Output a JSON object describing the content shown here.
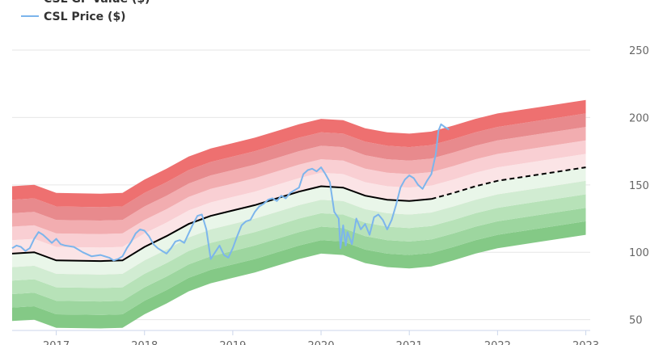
{
  "chart_data": {
    "type": "area",
    "legend": {
      "placement": "top-left",
      "items": [
        {
          "name": "CSL GF Value ($)",
          "color": "#000000"
        },
        {
          "name": "CSL Price ($)",
          "color": "#7cb5ec"
        }
      ]
    },
    "x_ticks": [
      "2017",
      "2018",
      "2019",
      "2020",
      "2021",
      "2022",
      "2023"
    ],
    "y_ticks": [
      50,
      100,
      150,
      200,
      250
    ],
    "ylim": [
      42,
      250
    ],
    "xlim": [
      2016.5,
      2023.05
    ],
    "grid": true,
    "gf_value": {
      "x": [
        2016.5,
        2016.75,
        2017.0,
        2017.5,
        2017.75,
        2018.0,
        2018.25,
        2018.5,
        2018.75,
        2019.0,
        2019.25,
        2019.5,
        2019.75,
        2020.0,
        2020.25,
        2020.5,
        2020.75,
        2021.0,
        2021.25,
        2021.5,
        2021.75,
        2022.0,
        2022.5,
        2023.0
      ],
      "y": [
        99,
        100,
        94,
        93.5,
        94,
        104,
        112,
        121,
        127,
        131,
        135,
        140,
        145,
        149,
        148,
        142,
        139,
        138,
        139.5,
        144,
        149,
        153,
        158,
        163
      ],
      "projected_from": 2021.25
    },
    "bands": {
      "offsets": [
        -50,
        -40,
        -30,
        -20,
        -10,
        10,
        20,
        30,
        40,
        50
      ],
      "colors": [
        "#84c986",
        "#9dd69f",
        "#b7e2b8",
        "#d1ecd2",
        "#e9f6e9",
        "#fbe4e6",
        "#f9cfd3",
        "#f2adb0",
        "#e88a8d",
        "#ee7070"
      ]
    },
    "price": {
      "x": [
        2016.5,
        2016.55,
        2016.6,
        2016.65,
        2016.7,
        2016.75,
        2016.8,
        2016.85,
        2016.9,
        2016.95,
        2017.0,
        2017.05,
        2017.1,
        2017.2,
        2017.3,
        2017.4,
        2017.5,
        2017.6,
        2017.65,
        2017.7,
        2017.75,
        2017.8,
        2017.85,
        2017.9,
        2017.95,
        2018.0,
        2018.05,
        2018.1,
        2018.15,
        2018.2,
        2018.25,
        2018.3,
        2018.35,
        2018.4,
        2018.45,
        2018.5,
        2018.55,
        2018.6,
        2018.65,
        2018.7,
        2018.75,
        2018.8,
        2018.85,
        2018.9,
        2018.95,
        2019.0,
        2019.05,
        2019.1,
        2019.15,
        2019.2,
        2019.25,
        2019.3,
        2019.35,
        2019.4,
        2019.45,
        2019.5,
        2019.55,
        2019.6,
        2019.65,
        2019.7,
        2019.75,
        2019.8,
        2019.85,
        2019.9,
        2019.95,
        2020.0,
        2020.05,
        2020.1,
        2020.15,
        2020.2,
        2020.22,
        2020.25,
        2020.28,
        2020.3,
        2020.35,
        2020.4,
        2020.45,
        2020.5,
        2020.55,
        2020.6,
        2020.65,
        2020.7,
        2020.75,
        2020.8,
        2020.85,
        2020.9,
        2020.95,
        2021.0,
        2021.05,
        2021.1,
        2021.15,
        2021.2,
        2021.25,
        2021.3,
        2021.33,
        2021.36,
        2021.4,
        2021.45
      ],
      "y": [
        103,
        105,
        104,
        101,
        103,
        110,
        115,
        113,
        110,
        107,
        110,
        106,
        105,
        104,
        100,
        97,
        98,
        96,
        94,
        95,
        97,
        103,
        108,
        114,
        117,
        116,
        112,
        106,
        103,
        101,
        99,
        103,
        108,
        109,
        107,
        114,
        121,
        127,
        128,
        117,
        95,
        100,
        105,
        98,
        96,
        103,
        112,
        120,
        123,
        124,
        130,
        134,
        136,
        139,
        140,
        138,
        142,
        140,
        144,
        146,
        148,
        158,
        161,
        162,
        160,
        163,
        158,
        152,
        130,
        125,
        103,
        120,
        105,
        115,
        106,
        125,
        117,
        121,
        113,
        126,
        128,
        124,
        117,
        124,
        135,
        148,
        154,
        157,
        155,
        150,
        147,
        153,
        158,
        173,
        190,
        195,
        193,
        191
      ]
    }
  }
}
